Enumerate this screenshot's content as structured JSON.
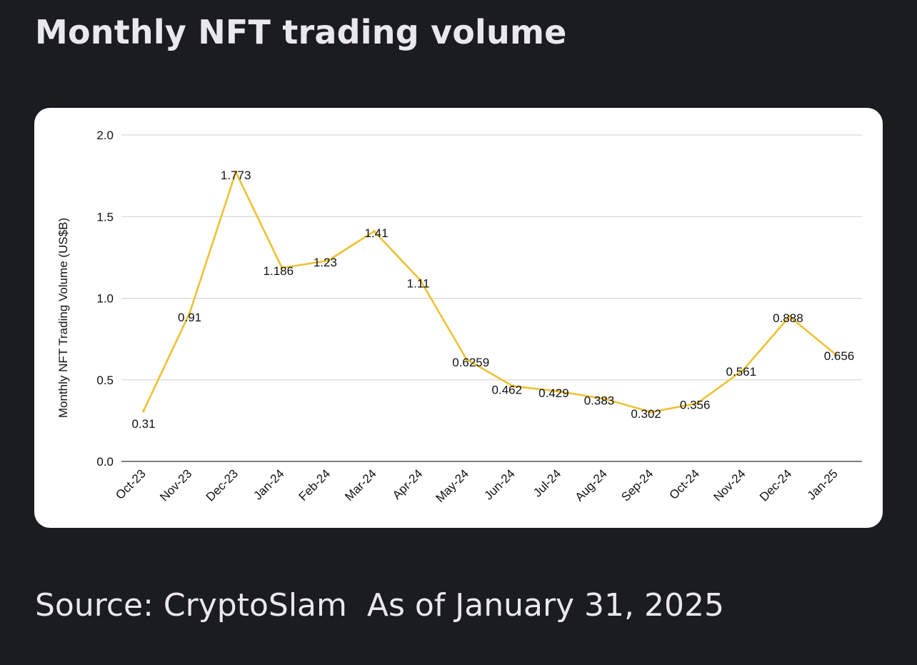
{
  "title": "Monthly NFT trading volume",
  "footer": {
    "source": "Source: CryptoSlam",
    "as_of": "As of January 31, 2025"
  },
  "colors": {
    "background": "#1b1c20",
    "card": "#ffffff",
    "line": "#ecc233",
    "grid": "#cfcfcf",
    "text_light": "#e9e9ec"
  },
  "chart_data": {
    "type": "line",
    "title": "",
    "xlabel": "",
    "ylabel": "Monthly NFT Trading Volume (US$B)",
    "ylim": [
      0,
      2
    ],
    "yticks": [
      "0.0",
      "0.5",
      "1.0",
      "1.5",
      "2.0"
    ],
    "grid": true,
    "categories": [
      "Oct-23",
      "Nov-23",
      "Dec-23",
      "Jan-24",
      "Feb-24",
      "Mar-24",
      "Apr-24",
      "May-24",
      "Jun-24",
      "Jul-24",
      "Aug-24",
      "Sep-24",
      "Oct-24",
      "Nov-24",
      "Dec-24",
      "Jan-25"
    ],
    "values": [
      0.31,
      0.91,
      1.773,
      1.186,
      1.23,
      1.41,
      1.11,
      0.6259,
      0.462,
      0.429,
      0.383,
      0.302,
      0.356,
      0.561,
      0.888,
      0.656
    ],
    "data_labels": [
      "0.31",
      "0.91",
      "1.773",
      "1.186",
      "1.23",
      "1.41",
      "1.11",
      "0.6259",
      "0.462",
      "0.429",
      "0.383",
      "0.302",
      "0.356",
      "0.561",
      "0.888",
      "0.656"
    ]
  }
}
